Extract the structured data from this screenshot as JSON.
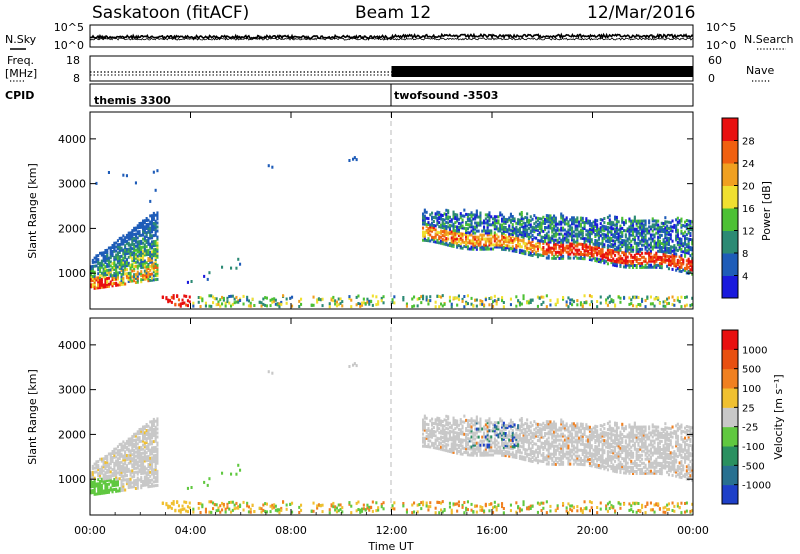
{
  "header": {
    "station": "Saskatoon (fitACF)",
    "beam": "Beam 12",
    "date": "12/Mar/2016"
  },
  "side_labels": {
    "n_sky": "N.Sky",
    "freq_line1": "Freq.",
    "freq_line2": "[MHz]",
    "cpid": "CPID",
    "n_search": "N.Search",
    "nave": "Nave"
  },
  "chart_data": [
    {
      "type": "line",
      "panel": "noise",
      "yticks_left": [
        "10^5",
        "10^0"
      ],
      "yticks_right": [
        "10^5",
        "10^0"
      ],
      "series": [
        {
          "name": "N.Sky",
          "style": "solid"
        },
        {
          "name": "N.Search",
          "style": "dotted"
        }
      ]
    },
    {
      "type": "line",
      "panel": "frequency",
      "yticks_left": [
        "18",
        "8"
      ],
      "yticks_right": [
        "60",
        "0"
      ],
      "series": [
        {
          "name": "Freq.",
          "style": "dotted"
        },
        {
          "name": "Nave",
          "style": "dense"
        }
      ],
      "cpid_segments": [
        {
          "label": "themis 3300",
          "start_hour": 0
        },
        {
          "label": "twofsound -3503",
          "start_hour": 12
        }
      ]
    },
    {
      "type": "heatmap",
      "panel": "power",
      "ylabel": "Slant Range [km]",
      "yticks": [
        1000,
        2000,
        3000,
        4000
      ],
      "ylim": [
        200,
        4600
      ],
      "colorbar": {
        "label": "Power [dB]",
        "ticks": [
          "4",
          "8",
          "12",
          "16",
          "20",
          "24",
          "28"
        ],
        "colors": [
          "#1a1adc",
          "#1e5cb8",
          "#2c8a74",
          "#4cc034",
          "#f0e030",
          "#f0a020",
          "#f06010",
          "#e81010"
        ]
      }
    },
    {
      "type": "heatmap",
      "panel": "velocity",
      "ylabel": "Slant Range [km]",
      "xlabel": "Time UT",
      "xticks": [
        "00:00",
        "04:00",
        "08:00",
        "12:00",
        "16:00",
        "20:00",
        "00:00"
      ],
      "xlim_hours": [
        0,
        24
      ],
      "yticks": [
        1000,
        2000,
        3000,
        4000
      ],
      "ylim": [
        200,
        4600
      ],
      "colorbar": {
        "label": "Velocity [m s⁻¹]",
        "ticks": [
          "1000",
          "500",
          "100",
          "25",
          "-25",
          "-100",
          "-500",
          "-1000"
        ],
        "colors": [
          "#1e40c8",
          "#287090",
          "#2a9060",
          "#60c840",
          "#c8c8c8",
          "#f0c030",
          "#f08020",
          "#e85010",
          "#e81010"
        ]
      }
    }
  ]
}
